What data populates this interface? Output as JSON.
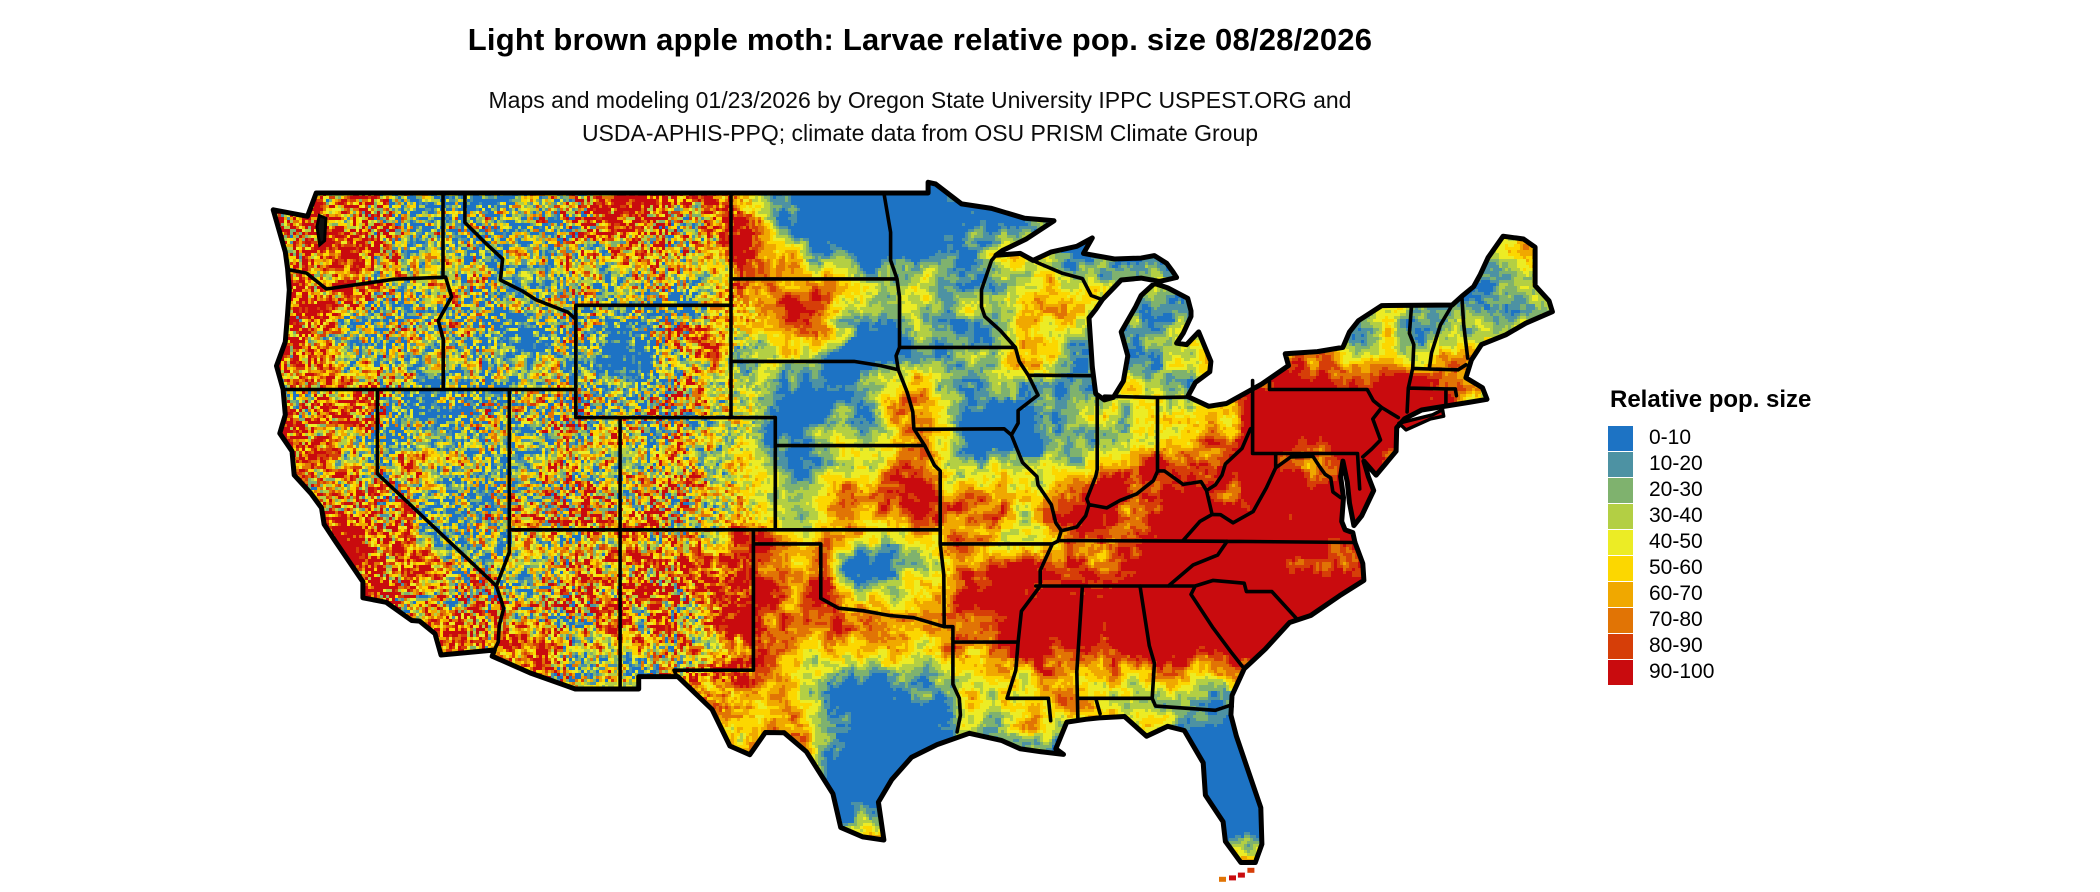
{
  "page": {
    "background": "#ffffff"
  },
  "header": {
    "title": "Light brown apple moth: Larvae relative pop. size 08/28/2026",
    "subtitle_line1": "Maps and modeling 01/23/2026 by Oregon State University IPPC USPEST.ORG and",
    "subtitle_line2": "USDA-APHIS-PPQ; climate data from OSU PRISM Climate Group"
  },
  "legend": {
    "title": "Relative pop. size",
    "entries": [
      {
        "label": "0-10",
        "color": "#1d73c4"
      },
      {
        "label": "10-20",
        "color": "#4d92a3"
      },
      {
        "label": "20-30",
        "color": "#7fb26e"
      },
      {
        "label": "30-40",
        "color": "#b3cf44"
      },
      {
        "label": "40-50",
        "color": "#ecec25"
      },
      {
        "label": "50-60",
        "color": "#fcd700"
      },
      {
        "label": "60-70",
        "color": "#f0a800"
      },
      {
        "label": "70-80",
        "color": "#e17405"
      },
      {
        "label": "80-90",
        "color": "#d63e08"
      },
      {
        "label": "90-100",
        "color": "#c90b0e"
      }
    ]
  },
  "map": {
    "region_shown": "contiguous United States",
    "border_color": "#000000",
    "water_color": "#ffffff"
  }
}
